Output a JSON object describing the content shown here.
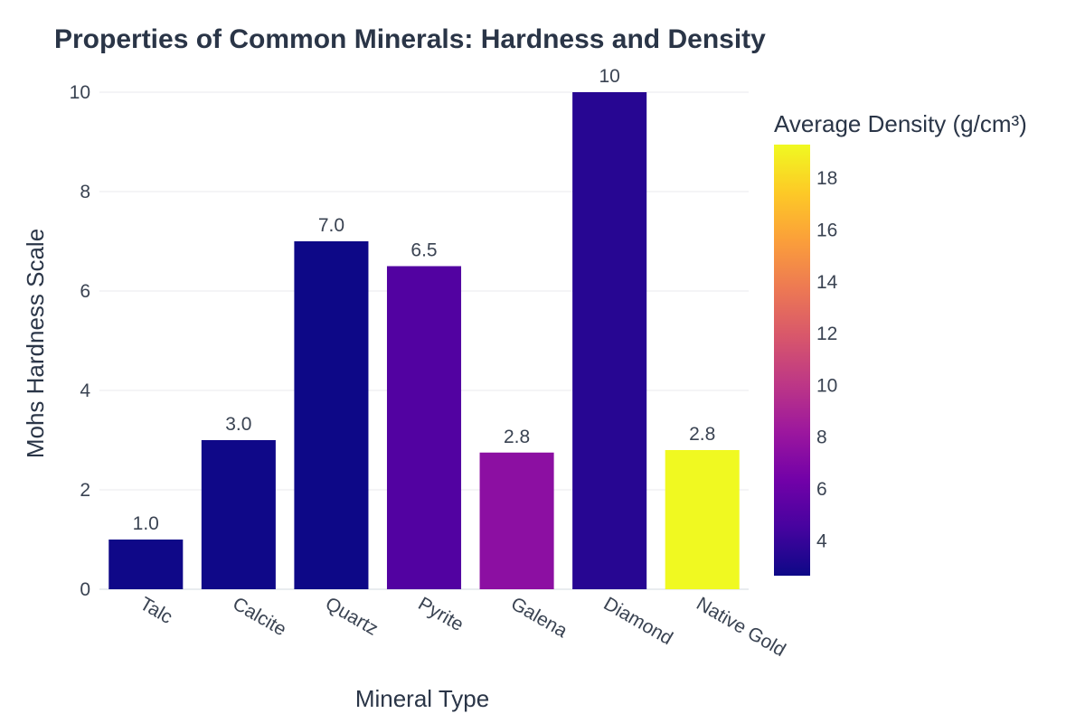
{
  "chart_data": {
    "type": "bar",
    "title": "Properties of Common Minerals: Hardness and Density",
    "xlabel": "Mineral Type",
    "ylabel": "Mohs Hardness Scale",
    "categories": [
      "Talc",
      "Calcite",
      "Quartz",
      "Pyrite",
      "Galena",
      "Diamond",
      "Native Gold"
    ],
    "values": [
      1,
      3,
      7,
      6.5,
      2.75,
      10,
      2.8
    ],
    "value_labels": [
      "1.0",
      "3.0",
      "7.0",
      "6.5",
      "2.8",
      "10",
      "2.8"
    ],
    "density_values": [
      2.7,
      2.7,
      2.65,
      5.0,
      7.5,
      3.5,
      19.3
    ],
    "ylim": [
      0,
      10.4
    ],
    "yticks": [
      0,
      2,
      4,
      6,
      8,
      10
    ],
    "grid": true,
    "colorbar": {
      "title": "Average Density (g/cm³)",
      "range": [
        2.65,
        19.3
      ],
      "ticks": [
        4,
        6,
        8,
        10,
        12,
        14,
        16,
        18
      ],
      "colorscale": [
        "#0d0887",
        "#46039f",
        "#7201a8",
        "#9c179e",
        "#bd3786",
        "#d8576b",
        "#ed7953",
        "#fb9f3a",
        "#fdca26",
        "#f0f921"
      ]
    }
  }
}
